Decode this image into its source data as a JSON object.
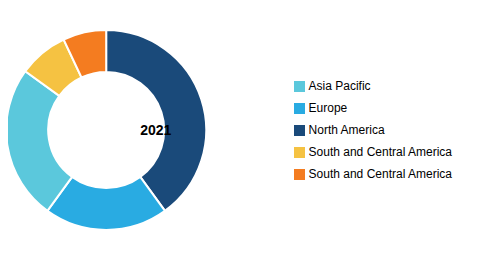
{
  "chart_data": {
    "type": "pie",
    "center_text": "2021",
    "categories": [
      "North America",
      "Europe",
      "Asia Pacific",
      "South and Central America",
      "South and Central America"
    ],
    "values": [
      40,
      20,
      25,
      8,
      7
    ],
    "colors": [
      "#1a4a7a",
      "#29abe2",
      "#5bc8dc",
      "#f5c242",
      "#f47c20"
    ],
    "legend": "right"
  }
}
